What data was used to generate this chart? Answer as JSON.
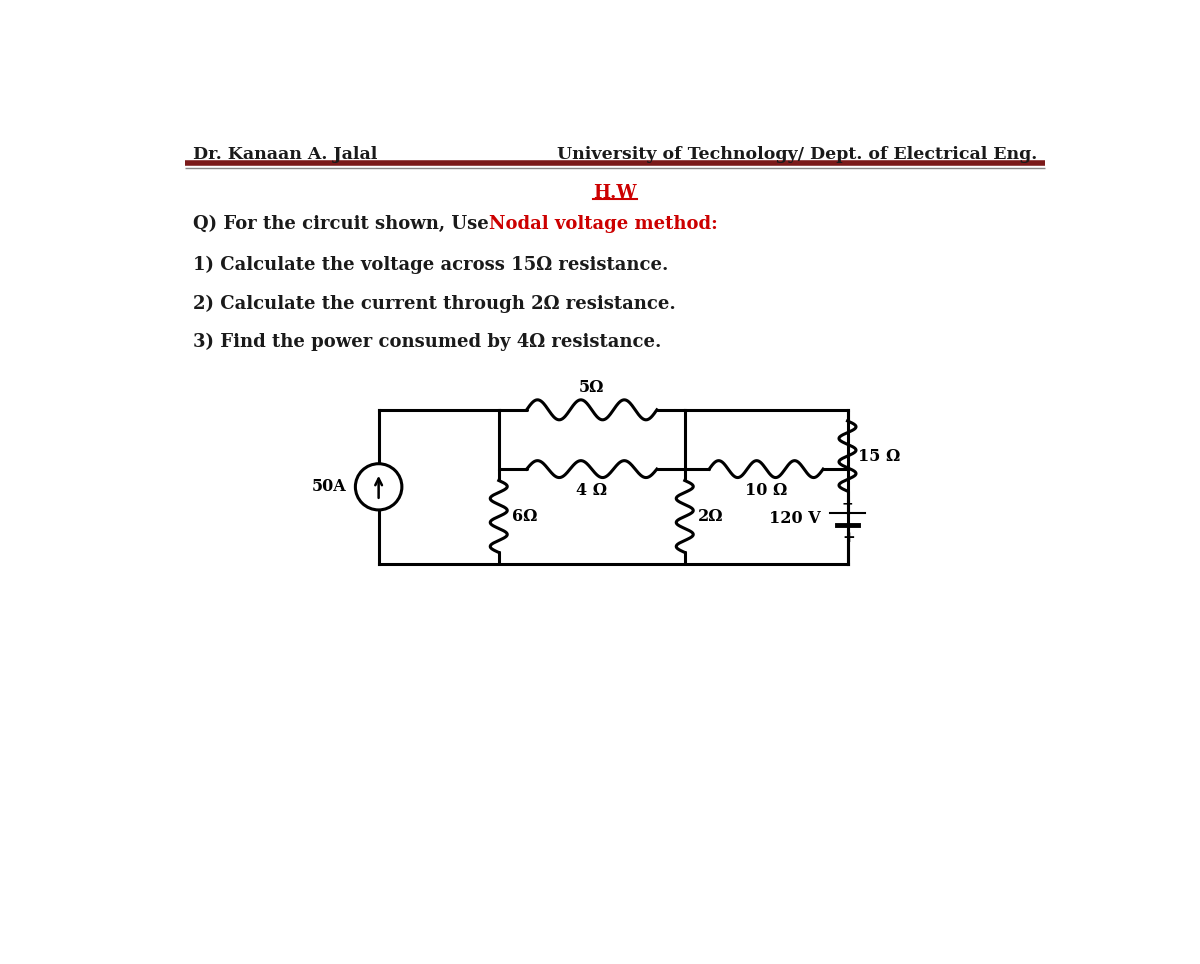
{
  "header_left": "Dr. Kanaan A. Jalal",
  "header_right": "University of Technology/ Dept. of Electrical Eng.",
  "hw_title": "H.W",
  "question_prefix": "Q) For the circuit shown, Use ",
  "question_highlight": "Nodal voltage method:",
  "question_highlight_color": "#cc0000",
  "item1": "1) Calculate the voltage across 15Ω resistance.",
  "item2": "2) Calculate the current through 2Ω resistance.",
  "item3": "3) Find the power consumed by 4Ω resistance.",
  "bg_color": "#ffffff",
  "text_color": "#1a1a1a",
  "header_line_color1": "#7b1a1a",
  "header_line_color2": "#888888",
  "resistor_5": "5Ω",
  "resistor_4": "4 Ω",
  "resistor_10": "10 Ω",
  "resistor_6": "6Ω",
  "resistor_2": "2Ω",
  "resistor_15": "15 Ω",
  "source_label": "50A",
  "voltage_label": "120 V"
}
